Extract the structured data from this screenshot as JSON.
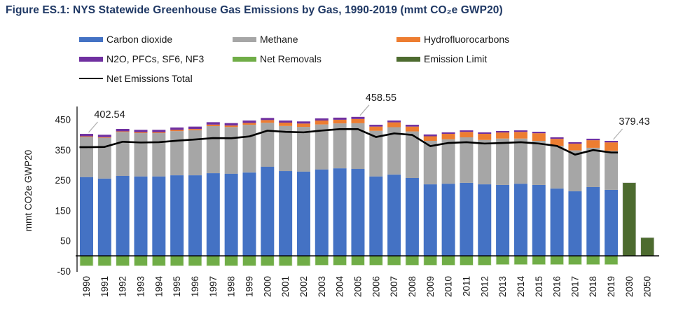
{
  "title": "Figure ES.1: NYS Statewide Greenhouse Gas Emissions by Gas, 1990-2019 (mmt CO₂e GWP20)",
  "colors": {
    "carbon_dioxide": "#4472C4",
    "methane": "#A6A6A6",
    "hydrofluorocarbons": "#ED7D31",
    "n2o_pfcs_sf6_nf3": "#7030A0",
    "net_removals": "#70AD47",
    "emission_limit": "#4D6B2F",
    "net_emissions_line": "#000000",
    "title_text": "#1F3864",
    "axis_text": "#1a1a1a",
    "leader_line": "#b0b0b0"
  },
  "legend": {
    "items": [
      {
        "label": "Carbon dioxide",
        "color": "#4472C4",
        "marker": "rect",
        "col": 0,
        "row": 0
      },
      {
        "label": "Methane",
        "color": "#A6A6A6",
        "marker": "rect",
        "col": 1,
        "row": 0
      },
      {
        "label": "Hydrofluorocarbons",
        "color": "#ED7D31",
        "marker": "rect",
        "col": 2,
        "row": 0
      },
      {
        "label": "N2O, PFCs, SF6, NF3",
        "color": "#7030A0",
        "marker": "rect",
        "col": 0,
        "row": 1
      },
      {
        "label": "Net Removals",
        "color": "#70AD47",
        "marker": "rect",
        "col": 1,
        "row": 1
      },
      {
        "label": "Emission Limit",
        "color": "#4D6B2F",
        "marker": "rect",
        "col": 2,
        "row": 1
      },
      {
        "label": "Net Emissions Total",
        "color": "#000000",
        "marker": "line",
        "col": 0,
        "row": 2
      }
    ]
  },
  "chart_data": {
    "type": "bar",
    "stacked": true,
    "title": "Figure ES.1: NYS Statewide Greenhouse Gas Emissions by Gas, 1990-2019 (mmt CO₂e GWP20)",
    "xlabel": "",
    "ylabel": "mmt CO2e GWP20",
    "ylim": [
      -50,
      470
    ],
    "yticks": [
      450,
      350,
      250,
      150,
      50,
      -50
    ],
    "grid": false,
    "legend_position": "top",
    "categories": [
      "1990",
      "1991",
      "1992",
      "1993",
      "1994",
      "1995",
      "1996",
      "1997",
      "1998",
      "1999",
      "2000",
      "2001",
      "2002",
      "2003",
      "2004",
      "2005",
      "2006",
      "2007",
      "2008",
      "2009",
      "2010",
      "2011",
      "2012",
      "2013",
      "2014",
      "2015",
      "2016",
      "2017",
      "2018",
      "2019",
      "2030",
      "2050"
    ],
    "stack_years": [
      "1990",
      "1991",
      "1992",
      "1993",
      "1994",
      "1995",
      "1996",
      "1997",
      "1998",
      "1999",
      "2000",
      "2001",
      "2002",
      "2003",
      "2004",
      "2005",
      "2006",
      "2007",
      "2008",
      "2009",
      "2010",
      "2011",
      "2012",
      "2013",
      "2014",
      "2015",
      "2016",
      "2017",
      "2018",
      "2019"
    ],
    "series": [
      {
        "name": "Carbon dioxide",
        "color": "#4472C4",
        "values": [
          260,
          255,
          264,
          262,
          262,
          266,
          266,
          273,
          271,
          275,
          294,
          280,
          278,
          285,
          289,
          287,
          262,
          268,
          257,
          236,
          238,
          241,
          236,
          234,
          238,
          234,
          222,
          213,
          227,
          218
        ]
      },
      {
        "name": "Methane",
        "color": "#A6A6A6",
        "values": [
          132.5,
          134.5,
          144.8,
          142.8,
          142.8,
          145.5,
          148.5,
          155,
          154,
          157.5,
          145,
          148.5,
          147.5,
          148.5,
          148,
          150.5,
          150.5,
          156.5,
          153.5,
          143.5,
          146.5,
          150,
          146.5,
          153,
          149,
          145.5,
          141,
          135,
          129.5,
          128.4
        ]
      },
      {
        "name": "Hydrofluorocarbons",
        "color": "#ED7D31",
        "values": [
          2,
          2,
          2,
          3,
          3,
          4,
          4,
          5,
          5,
          6,
          9,
          11,
          11,
          13,
          12,
          14,
          14,
          16,
          16,
          15,
          18,
          18,
          20,
          20,
          22,
          25,
          23,
          22,
          25,
          28
        ]
      },
      {
        "name": "N2O, PFCs, SF6, NF3",
        "color": "#7030A0",
        "values": [
          8,
          8,
          8,
          8,
          8,
          8,
          8,
          8,
          8,
          8,
          7,
          7,
          7,
          7,
          7,
          7,
          6,
          6,
          6,
          6,
          5,
          5,
          5,
          5,
          5,
          5,
          5,
          5,
          5,
          5
        ]
      },
      {
        "name": "Net Removals",
        "color": "#70AD47",
        "values": [
          -33,
          -33,
          -33,
          -33,
          -33,
          -33,
          -33,
          -33,
          -33,
          -33,
          -33,
          -33,
          -33,
          -31,
          -31,
          -31,
          -31,
          -31,
          -31,
          -31,
          -31,
          -31,
          -31,
          -29,
          -29,
          -29,
          -29,
          -29,
          -29,
          -29
        ]
      }
    ],
    "line_series": {
      "name": "Net Emissions Total",
      "color": "#000000",
      "values": [
        358.5,
        359.5,
        376.5,
        374,
        375,
        380,
        384,
        388.5,
        388,
        394,
        413,
        409,
        407.5,
        413.5,
        418,
        418,
        392,
        404,
        399,
        362,
        372.5,
        375,
        370.5,
        372.5,
        375,
        370.5,
        362.5,
        334,
        349,
        341
      ]
    },
    "limit_series": {
      "name": "Emission Limit",
      "color": "#4D6B2F",
      "points": [
        {
          "year": "2030",
          "value": 241.5
        },
        {
          "year": "2050",
          "value": 60.4
        }
      ]
    },
    "annotations": [
      {
        "label": "402.54",
        "year": "1990"
      },
      {
        "label": "458.55",
        "year": "2005"
      },
      {
        "label": "379.43",
        "year": "2019"
      }
    ]
  }
}
